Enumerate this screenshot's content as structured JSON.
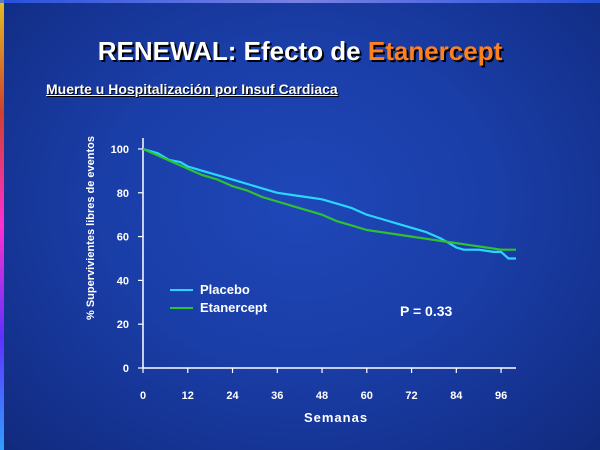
{
  "slide": {
    "title_prefix": "RENEWAL: Efecto de ",
    "title_highlight": "Etanercept",
    "subtitle": "Muerte u Hospitalización por Insuf Cardiaca"
  },
  "colors": {
    "background": "#1a3ea8",
    "title_highlight": "#ff8020",
    "placebo": "#29d6ff",
    "etanercept": "#2fc22f"
  },
  "chart_data": {
    "type": "line",
    "ylabel": "% Supervivientes libres de eventos",
    "xlabel": "Semanas",
    "xlim": [
      0,
      100
    ],
    "ylim": [
      0,
      105
    ],
    "xticks": [
      0,
      12,
      24,
      36,
      48,
      60,
      72,
      84,
      96
    ],
    "yticks": [
      0,
      20,
      40,
      60,
      80,
      100
    ],
    "legend_position": "lower-left",
    "annotation": "P = 0.33",
    "series": [
      {
        "name": "Placebo",
        "color": "#29d6ff",
        "x": [
          0,
          4,
          7,
          10,
          12,
          16,
          20,
          24,
          28,
          32,
          36,
          40,
          44,
          48,
          52,
          56,
          60,
          64,
          68,
          72,
          76,
          80,
          82,
          84,
          86,
          90,
          94,
          96,
          98,
          100
        ],
        "y": [
          100,
          98,
          95,
          94,
          92,
          90,
          88,
          86,
          84,
          82,
          80,
          79,
          78,
          77,
          75,
          73,
          70,
          68,
          66,
          64,
          62,
          59,
          57,
          55,
          54,
          54,
          53,
          53,
          50,
          50
        ]
      },
      {
        "name": "Etanercept",
        "color": "#2fc22f",
        "x": [
          0,
          4,
          8,
          12,
          16,
          20,
          24,
          28,
          32,
          36,
          40,
          44,
          48,
          52,
          56,
          60,
          64,
          68,
          72,
          76,
          80,
          84,
          88,
          92,
          96,
          100
        ],
        "y": [
          100,
          97,
          94,
          91,
          88,
          86,
          83,
          81,
          78,
          76,
          74,
          72,
          70,
          67,
          65,
          63,
          62,
          61,
          60,
          59,
          58,
          57,
          56,
          55,
          54,
          54
        ]
      }
    ]
  }
}
